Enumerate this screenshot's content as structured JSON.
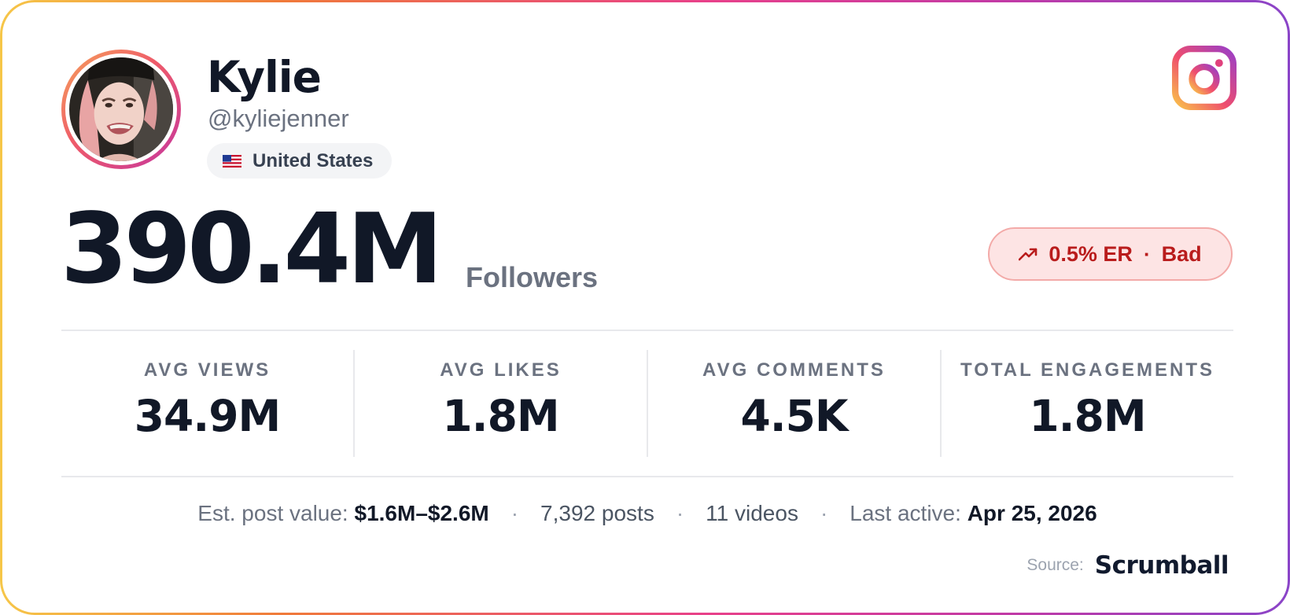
{
  "profile": {
    "name": "Kylie",
    "handle": "@kyliejenner",
    "country": "United States",
    "flag_icon": "us-flag-icon",
    "platform_icon": "instagram-icon"
  },
  "followers": {
    "count": "390.4M",
    "label": "Followers"
  },
  "engagement": {
    "icon": "trending-up-icon",
    "value": "0.5% ER",
    "separator": "·",
    "rating": "Bad",
    "rating_color": "#b91c1c"
  },
  "stats": [
    {
      "label": "AVG VIEWS",
      "value": "34.9M"
    },
    {
      "label": "AVG LIKES",
      "value": "1.8M"
    },
    {
      "label": "AVG COMMENTS",
      "value": "4.5K"
    },
    {
      "label": "TOTAL ENGAGEMENTS",
      "value": "1.8M"
    }
  ],
  "meta": {
    "post_value_label": "Est. post value:",
    "post_value": "$1.6M–$2.6M",
    "separator": "·",
    "posts": "7,392 posts",
    "videos": "11 videos",
    "last_active_label": "Last active:",
    "last_active": "Apr 25, 2026"
  },
  "source": {
    "label": "Source:",
    "brand": "Scrumball"
  },
  "colors": {
    "border_gradient": [
      "#f6c648",
      "#f07a3a",
      "#e8408a",
      "#c23aa6",
      "#8a44c8"
    ],
    "text_primary": "#111827",
    "text_muted": "#6b7280"
  }
}
